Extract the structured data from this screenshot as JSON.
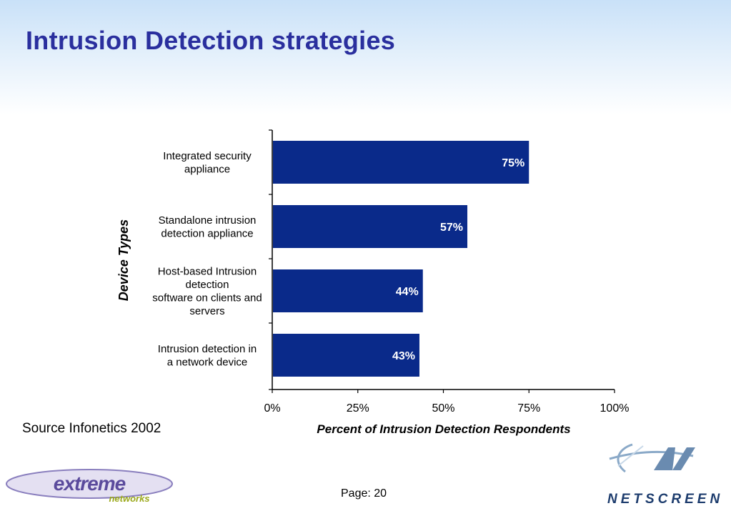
{
  "slide": {
    "title": "Intrusion Detection strategies",
    "source": "Source Infonetics 2002",
    "page": "Page: 20"
  },
  "logos": {
    "left": {
      "word1": "extreme",
      "word2": "networks",
      "colors": [
        "#5a4a9c",
        "#c8d22a"
      ]
    },
    "right": {
      "text": "NETSCREEN",
      "mark": "NetScreen emblem"
    }
  },
  "colors": {
    "title": "#2a2f9e",
    "bar": "#0a2a8a",
    "bar_label": "#ffffff"
  },
  "chart_data": {
    "type": "bar",
    "orientation": "horizontal",
    "categories": [
      [
        "Integrated security",
        "appliance"
      ],
      [
        "Standalone intrusion",
        "detection appliance"
      ],
      [
        "Host-based Intrusion",
        "detection",
        "software on clients and",
        "servers"
      ],
      [
        "Intrusion detection in",
        "a network device"
      ]
    ],
    "values": [
      75,
      57,
      44,
      43
    ],
    "data_labels": [
      "75%",
      "57%",
      "44%",
      "43%"
    ],
    "xlim": [
      0,
      100
    ],
    "x_ticks": [
      0,
      25,
      50,
      75,
      100
    ],
    "x_tick_labels": [
      "0%",
      "25%",
      "50%",
      "75%",
      "100%"
    ],
    "xlabel": "Percent of Intrusion Detection Respondents",
    "ylabel": "Device Types",
    "grid": false,
    "legend": "none"
  }
}
